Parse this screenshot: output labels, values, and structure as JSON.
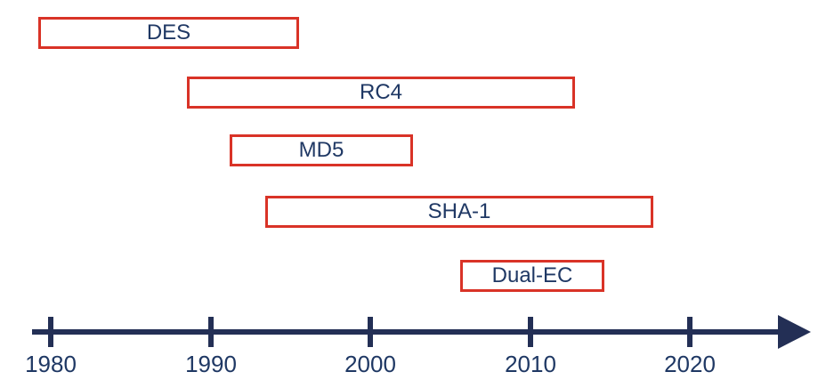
{
  "colors": {
    "bar_border": "#D93327",
    "label_text": "#1F3864",
    "axis": "#232F55",
    "background": "#FFFFFF"
  },
  "chart_data": {
    "type": "bar",
    "variant": "horizontal-timeline",
    "title": "",
    "xlabel": "",
    "ylabel": "",
    "axis": {
      "unit": "year",
      "ticks": [
        1980,
        1990,
        2000,
        2010,
        2020
      ],
      "tick_labels": [
        "1980",
        "1990",
        "2000",
        "2010",
        "2020"
      ],
      "xlim": [
        1978.8,
        2027.5
      ],
      "arrow_end": true,
      "grid": false,
      "legend": false
    },
    "series": [
      {
        "name": "DES",
        "start": 1979.2,
        "end": 1995.5
      },
      {
        "name": "RC4",
        "start": 1988.5,
        "end": 2012.8
      },
      {
        "name": "MD5",
        "start": 1991.2,
        "end": 2002.7
      },
      {
        "name": "SHA-1",
        "start": 1993.4,
        "end": 2017.7
      },
      {
        "name": "Dual-EC",
        "start": 2005.6,
        "end": 2014.6
      }
    ]
  }
}
